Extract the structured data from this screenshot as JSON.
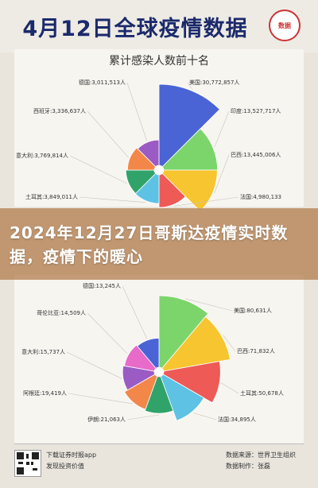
{
  "header": {
    "title": "4月12日全球疫情数据",
    "logo_text": "数据"
  },
  "banner": {
    "text": "2024年12月27日哥斯达疫情实时数据，疫情下的暖心"
  },
  "footer": {
    "line1": "下载证券时报app",
    "line2": "发现投资价值",
    "source_prefix": "数据来源：",
    "source": "世界卫生组织",
    "editor_prefix": "数据制作：",
    "editor": "张磊"
  },
  "chart_data": [
    {
      "type": "pie",
      "title": "累计感染人数前十名",
      "style": "rose",
      "center": "white",
      "entries": [
        {
          "name": "美国",
          "label": "美国:30,772,857人",
          "value": 30772857,
          "color": "#4a64d6"
        },
        {
          "name": "印度",
          "label": "印度:13,527,717人",
          "value": 13527717,
          "color": "#7cd56a"
        },
        {
          "name": "巴西",
          "label": "巴西:13,445,006人",
          "value": 13445006,
          "color": "#f7c530"
        },
        {
          "name": "法国",
          "label": "法国:4,980,133",
          "value": 4980133,
          "color": "#ee5a55"
        },
        {
          "name": "土耳其",
          "label": "土耳其:3,849,011人",
          "value": 3849011,
          "color": "#5ec2e4"
        },
        {
          "name": "意大利",
          "label": "意大利:3,769,814人",
          "value": 3769814,
          "color": "#30a36a"
        },
        {
          "name": "西班牙",
          "label": "西班牙:3,336,637人",
          "value": 3336637,
          "color": "#f3874a"
        },
        {
          "name": "德国",
          "label": "德国:3,011,513人",
          "value": 3011513,
          "color": "#9b5bc5"
        }
      ]
    },
    {
      "type": "pie",
      "style": "rose",
      "center": "white",
      "entries": [
        {
          "name": "美国",
          "label": "美国:80,631人",
          "value": 80631,
          "color": "#7cd56a"
        },
        {
          "name": "巴西",
          "label": "巴西:71,832人",
          "value": 71832,
          "color": "#f7c530"
        },
        {
          "name": "土耳其",
          "label": "土耳其:50,678人",
          "value": 50678,
          "color": "#ee5a55"
        },
        {
          "name": "法国",
          "label": "法国:34,895人",
          "value": 34895,
          "color": "#5ec2e4"
        },
        {
          "name": "伊朗",
          "label": "伊朗:21,063人",
          "value": 21063,
          "color": "#30a36a"
        },
        {
          "name": "阿根廷",
          "label": "阿根廷:19,419人",
          "value": 19419,
          "color": "#f3874a"
        },
        {
          "name": "意大利",
          "label": "意大利:15,737人",
          "value": 15737,
          "color": "#9b5bc5"
        },
        {
          "name": "哥伦比亚",
          "label": "哥伦比亚:14,509人",
          "value": 14509,
          "color": "#e86ac9"
        },
        {
          "name": "德国",
          "label": "德国:13,245人",
          "value": 13245,
          "color": "#4a64d6"
        }
      ]
    }
  ]
}
